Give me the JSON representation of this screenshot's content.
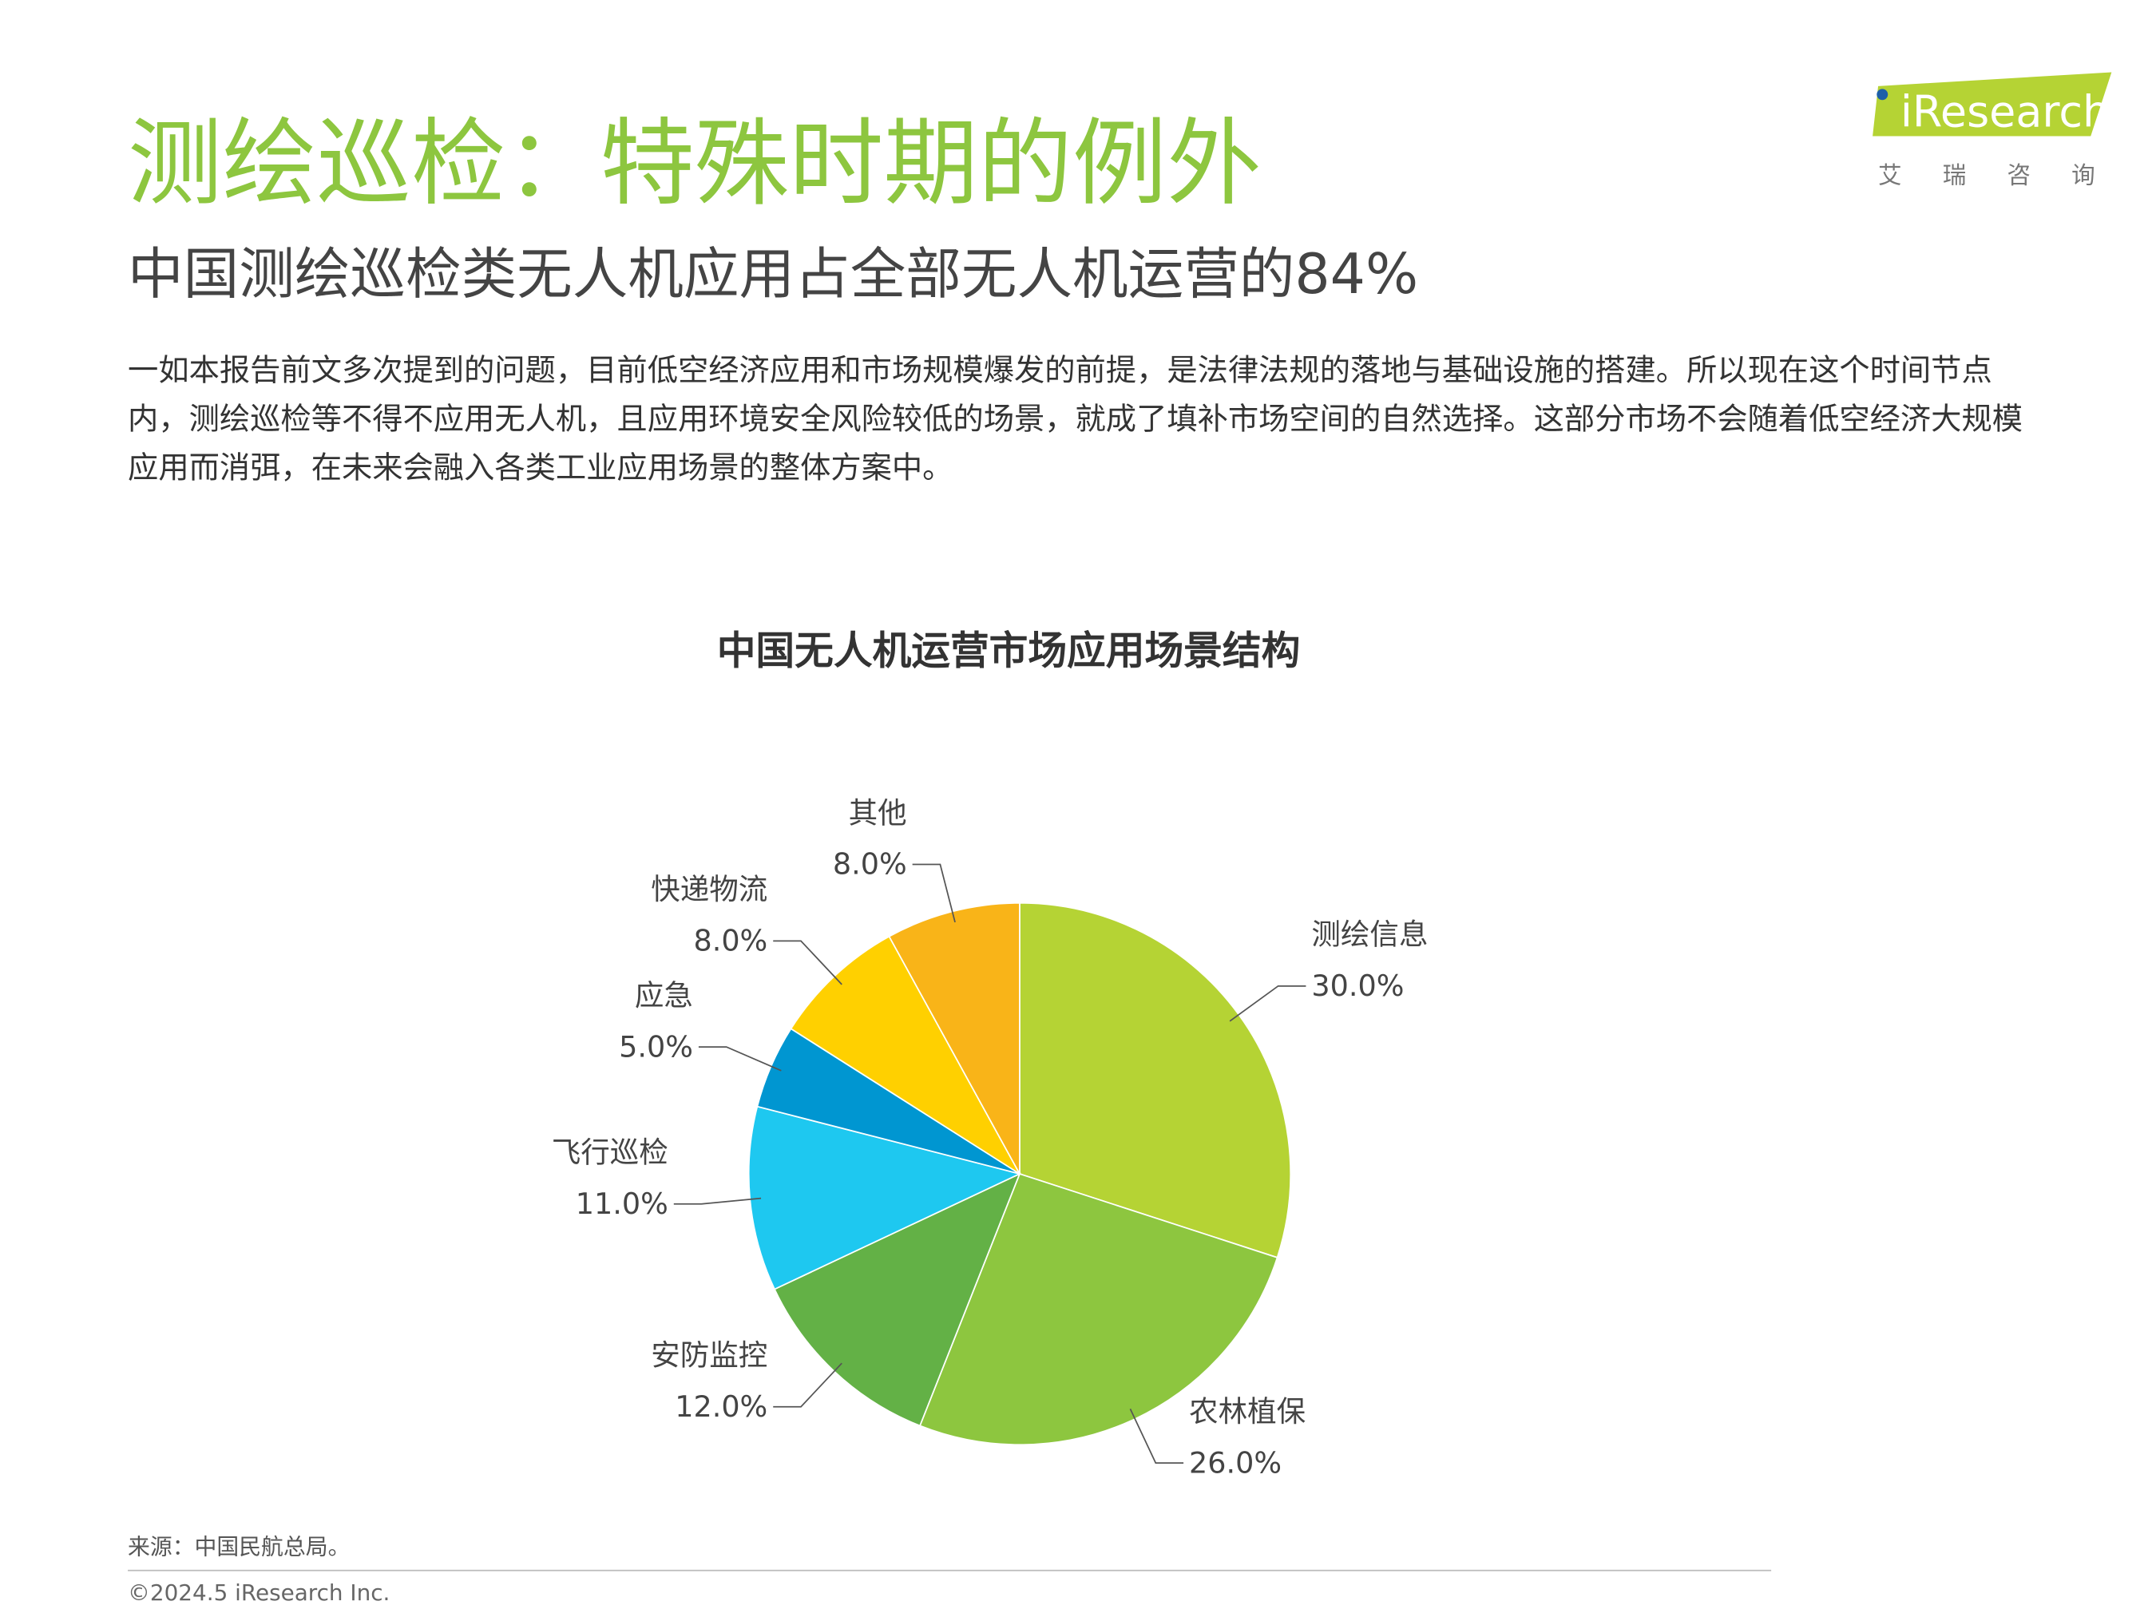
{
  "header": {
    "title": "测绘巡检：特殊时期的例外",
    "subtitle": "中国测绘巡检类无人机应用占全部无人机运营的84%",
    "body": "一如本报告前文多次提到的问题，目前低空经济应用和市场规模爆发的前提，是法律法规的落地与基础设施的搭建。所以现在这个时间节点内，测绘巡检等不得不应用无人机，且应用环境安全风险较低的场景，就成了填补市场空间的自然选择。这部分市场不会随着低空经济大规模应用而消弭，在未来会融入各类工业应用场景的整体方案中。"
  },
  "logo": {
    "name": "iResearch",
    "tagline": "艾 瑞 咨 询"
  },
  "chart_data": {
    "type": "pie",
    "title": "中国无人机运营市场应用场景结构",
    "categories": [
      "测绘信息",
      "农林植保",
      "安防监控",
      "飞行巡检",
      "应急",
      "快递物流",
      "其他"
    ],
    "values": [
      30,
      26,
      12,
      11,
      5,
      8,
      8
    ],
    "value_labels": [
      "30.0%",
      "26.0%",
      "12.0%",
      "11.0%",
      "5.0%",
      "8.0%",
      "8.0%"
    ],
    "colors": [
      "#b5d334",
      "#8dc63f",
      "#63b146",
      "#1ec8f0",
      "#0096d1",
      "#ffd000",
      "#f9b418"
    ]
  },
  "footer": {
    "source": "来源：中国民航总局。",
    "copyright": "©2024.5 iResearch Inc."
  }
}
